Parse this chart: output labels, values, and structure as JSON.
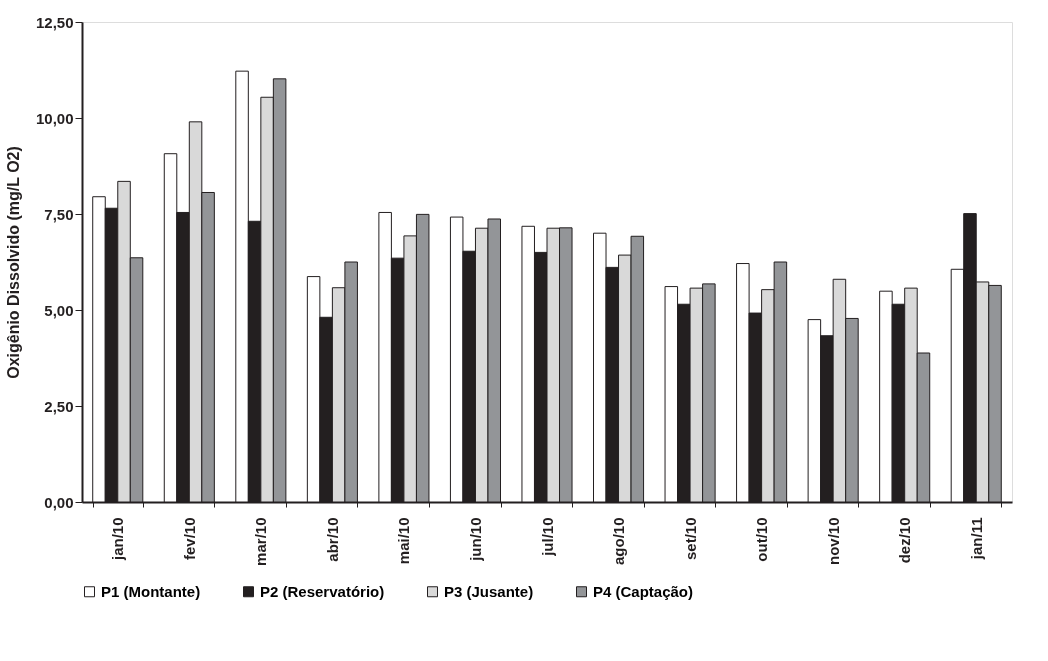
{
  "chart_data": {
    "type": "bar",
    "ylabel": "Oxigênio Dissolvido (mg/L O2)",
    "categories": [
      "jan/10",
      "fev/10",
      "mar/10",
      "abr/10",
      "mai/10",
      "jun/10",
      "jul/10",
      "ago/10",
      "set/10",
      "out/10",
      "nov/10",
      "dez/10",
      "jan/11"
    ],
    "series": [
      {
        "name": "P1 (Montante)",
        "color": "#ffffff",
        "values": [
          7.95,
          9.07,
          11.22,
          5.87,
          7.54,
          7.42,
          7.18,
          7.0,
          5.61,
          6.21,
          4.75,
          5.49,
          6.06
        ]
      },
      {
        "name": "P2 (Reservatório)",
        "color": "#231f20",
        "values": [
          7.65,
          7.54,
          7.31,
          4.81,
          6.35,
          6.53,
          6.5,
          6.11,
          5.15,
          4.92,
          4.33,
          5.15,
          7.51
        ]
      },
      {
        "name": "P3 (Jusante)",
        "color": "#d9d9d9",
        "values": [
          8.35,
          9.9,
          10.54,
          5.58,
          6.93,
          7.13,
          7.13,
          6.43,
          5.57,
          5.53,
          5.8,
          5.57,
          5.73
        ]
      },
      {
        "name": "P4 (Captação)",
        "color": "#939598",
        "values": [
          6.36,
          8.06,
          11.02,
          6.25,
          7.49,
          7.37,
          7.14,
          6.92,
          5.68,
          6.25,
          4.78,
          3.88,
          5.64
        ]
      }
    ],
    "ylim": [
      0,
      12.5
    ],
    "yticks": [
      {
        "value": 0,
        "label": "0,00"
      },
      {
        "value": 2.5,
        "label": "2,50"
      },
      {
        "value": 5,
        "label": "5,00"
      },
      {
        "value": 7.5,
        "label": "7,50"
      },
      {
        "value": 10,
        "label": "10,00"
      },
      {
        "value": 12.5,
        "label": "12,50"
      }
    ],
    "grid": false,
    "legend": "bottom"
  }
}
